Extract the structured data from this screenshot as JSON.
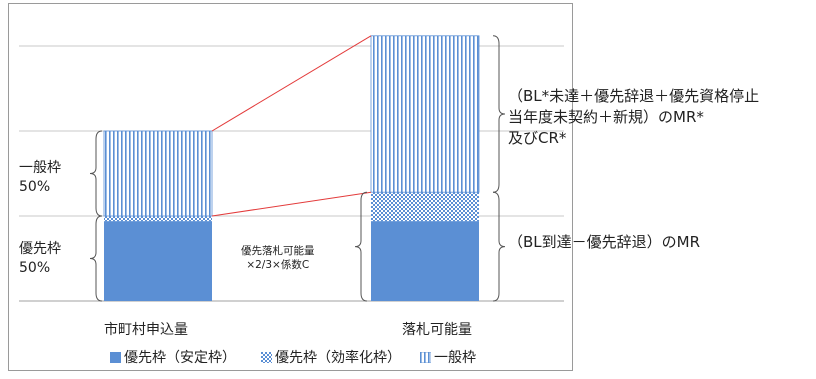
{
  "chart_data": {
    "type": "bar",
    "stacked": true,
    "categories": [
      "市町村申込量",
      "落札可能量"
    ],
    "series": [
      {
        "name": "優先枠（安定枠）",
        "values": [
          47,
          47
        ],
        "color": "#5b8fd4",
        "pattern": "solid"
      },
      {
        "name": "優先枠（効率化枠）",
        "values": [
          3,
          17
        ],
        "color": "#5b8fd4",
        "pattern": "checker"
      },
      {
        "name": "一般枠",
        "values": [
          50,
          92
        ],
        "color": "#5b8fd4",
        "pattern": "vertical-lines"
      }
    ],
    "ylim": [
      0,
      160
    ],
    "gridlines": [
      50,
      100,
      150
    ],
    "grid": true,
    "legend_position": "bottom",
    "connector_color": "#e33b3b"
  },
  "labels": {
    "general_label": "一般枠",
    "general_pct": "50%",
    "priority_label": "優先枠",
    "priority_pct": "50%",
    "priority_note_line1": "優先落札可能量",
    "priority_note_line2": "×2/3×係数C"
  },
  "annotations": {
    "upper_line1": "（BL*未達＋優先辞退＋優先資格停止",
    "upper_line2": "当年度未契約＋新規）のMR*",
    "upper_line3": "及びCR*",
    "lower_line1": "（BL到達－優先辞退）のMR"
  }
}
